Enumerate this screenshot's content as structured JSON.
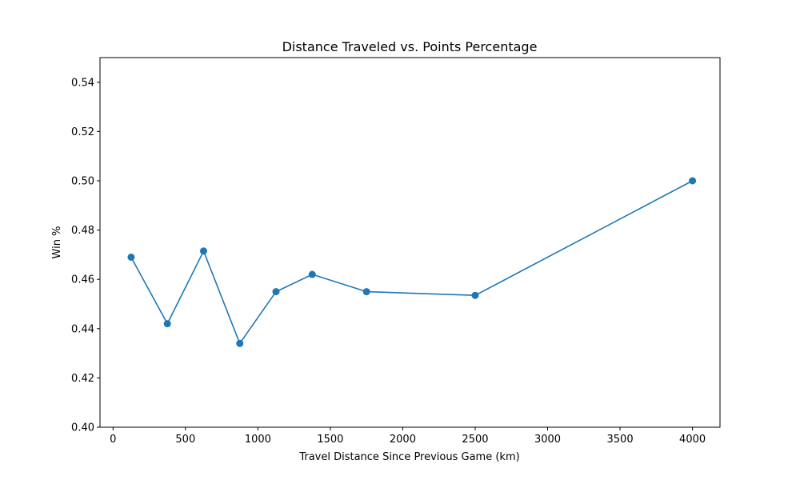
{
  "chart_data": {
    "type": "line",
    "title": "Distance Traveled vs. Points Percentage",
    "xlabel": "Travel Distance Since Previous Game (km)",
    "ylabel": "Win %",
    "xlim": [
      -90,
      4190
    ],
    "ylim": [
      0.4,
      0.55
    ],
    "xticks": [
      0,
      500,
      1000,
      1500,
      2000,
      2500,
      3000,
      3500,
      4000
    ],
    "xtick_labels": [
      "0",
      "500",
      "1000",
      "1500",
      "2000",
      "2500",
      "3000",
      "3500",
      "4000"
    ],
    "yticks": [
      0.4,
      0.42,
      0.44,
      0.46,
      0.48,
      0.5,
      0.52,
      0.54
    ],
    "ytick_labels": [
      "0.40",
      "0.42",
      "0.44",
      "0.46",
      "0.48",
      "0.50",
      "0.52",
      "0.54"
    ],
    "grid": false,
    "color": "#1f77b4",
    "marker": "circle",
    "series": [
      {
        "x": [
          125,
          375,
          625,
          875,
          1125,
          1375,
          1750,
          2500,
          4000
        ],
        "y": [
          0.469,
          0.442,
          0.4715,
          0.434,
          0.455,
          0.462,
          0.455,
          0.4535,
          0.5
        ]
      }
    ]
  }
}
